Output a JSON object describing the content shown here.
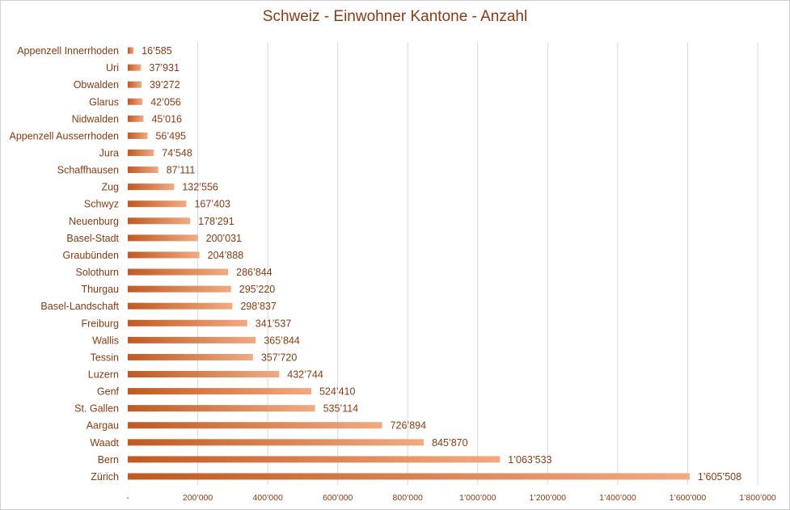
{
  "chart_data": {
    "type": "bar",
    "orientation": "horizontal",
    "title": "Schweiz - Einwohner Kantone - Anzahl",
    "xlabel": "",
    "ylabel": "",
    "xlim": [
      0,
      1800000
    ],
    "grid": true,
    "categories": [
      "Appenzell Innerrhoden",
      "Uri",
      "Obwalden",
      "Glarus",
      "Nidwalden",
      "Appenzell Ausserrhoden",
      "Jura",
      "Schaffhausen",
      "Zug",
      "Schwyz",
      "Neuenburg",
      "Basel-Stadt",
      "Graubünden",
      "Solothurn",
      "Thurgau",
      "Basel-Landschaft",
      "Freiburg",
      "Wallis",
      "Tessin",
      "Luzern",
      "Genf",
      "St. Gallen",
      "Aargau",
      "Waadt",
      "Bern",
      "Zürich"
    ],
    "values": [
      16585,
      37931,
      39272,
      42056,
      45016,
      56495,
      74548,
      87111,
      132556,
      167403,
      178291,
      200031,
      204888,
      286844,
      295220,
      298837,
      341537,
      365844,
      357720,
      432744,
      524410,
      535114,
      726894,
      845870,
      1063533,
      1605508
    ],
    "value_labels": [
      "16’585",
      "37’931",
      "39’272",
      "42’056",
      "45’016",
      "56’495",
      "74’548",
      "87’111",
      "132’556",
      "167’403",
      "178’291",
      "200’031",
      "204’888",
      "286’844",
      "295’220",
      "298’837",
      "341’537",
      "365’844",
      "357’720",
      "432’744",
      "524’410",
      "535’114",
      "726’894",
      "845’870",
      "1’063’533",
      "1’605’508"
    ],
    "ticks": [
      0,
      200000,
      400000,
      600000,
      800000,
      1000000,
      1200000,
      1400000,
      1600000,
      1800000
    ],
    "tick_labels": [
      "-",
      "200’000",
      "400’000",
      "600’000",
      "800’000",
      "1’000’000",
      "1’200’000",
      "1’400’000",
      "1’600’000",
      "1’800’000"
    ],
    "colors": {
      "bar_start": "#c05a22",
      "bar_end": "#f2aa82",
      "text": "#8a3a12",
      "grid": "#d9d9d9"
    }
  }
}
